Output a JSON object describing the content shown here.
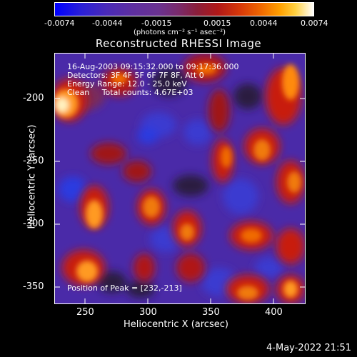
{
  "colorbar": {
    "ticks": [
      "-0.0074",
      "-0.0044",
      "-0.0015",
      "0.0015",
      "0.0044",
      "0.0074"
    ],
    "unit": "(photons cm⁻² s⁻¹ asec⁻²)"
  },
  "title": "Reconstructed RHESSI Image",
  "info": {
    "line1": "16-Aug-2003 09:15:32.000 to 09:17:36.000",
    "line2": "Detectors: 3F 4F 5F 6F 7F 8F, Att 0",
    "line3": "Energy Range: 12.0 - 25.0 keV",
    "line4": "Clean     Total counts: 4.67E+03"
  },
  "peak": "Position of Peak = [232,-213]",
  "axes": {
    "x_title": "Heliocentric X (arcsec)",
    "y_title": "Heliocentric Y (arcsec)",
    "x_ticks": [
      "250",
      "300",
      "350",
      "400"
    ],
    "y_ticks": [
      "-200",
      "-250",
      "-300",
      "-350"
    ]
  },
  "timestamp": "4-May-2022 21:51"
}
